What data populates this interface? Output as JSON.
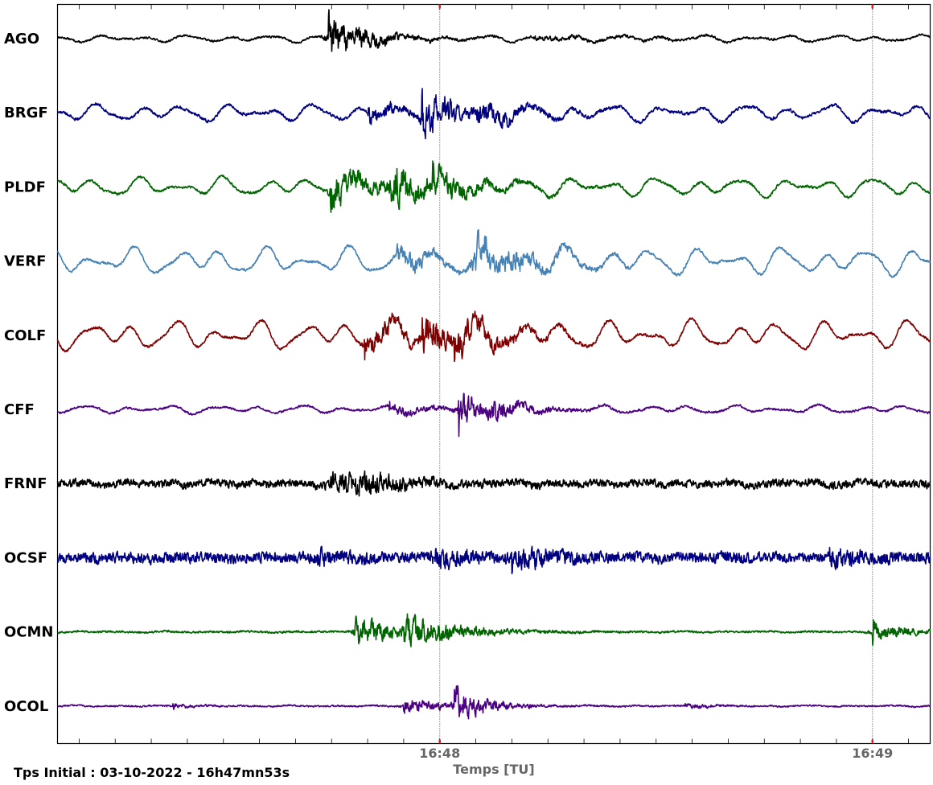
{
  "chart_data": {
    "type": "line",
    "title": "",
    "xlabel": "Temps [TU]",
    "ylabel": "",
    "start_time_text": "Tps Initial : 03-10-2022 - 16h47mn53s",
    "start_time_seconds": 53,
    "duration_seconds": 121,
    "x_ticks": [
      {
        "seconds": 60,
        "label": "16:48"
      },
      {
        "seconds": 120,
        "label": "16:49"
      }
    ],
    "minor_tick_every_seconds": 5,
    "grid": "dotted vertical lines at major ticks",
    "traces": [
      {
        "station": "AGO",
        "color": "#000000",
        "noise": 0.04,
        "low_freq_amp": 0.1,
        "events": [
          {
            "t": 37.5,
            "amp": 0.75,
            "decay": 5
          },
          {
            "t": 66,
            "amp": 0.06,
            "decay": 12
          }
        ]
      },
      {
        "station": "BRGF",
        "color": "#000080",
        "noise": 0.06,
        "low_freq_amp": 0.25,
        "events": [
          {
            "t": 43,
            "amp": 0.25,
            "decay": 6
          },
          {
            "t": 50.5,
            "amp": 0.6,
            "decay": 5
          },
          {
            "t": 58,
            "amp": 0.25,
            "decay": 6
          }
        ]
      },
      {
        "station": "PLDF",
        "color": "#006400",
        "noise": 0.05,
        "low_freq_amp": 0.28,
        "events": [
          {
            "t": 37.8,
            "amp": 0.55,
            "decay": 6
          },
          {
            "t": 46,
            "amp": 0.65,
            "decay": 5
          },
          {
            "t": 52,
            "amp": 0.3,
            "decay": 6
          }
        ]
      },
      {
        "station": "VERF",
        "color": "#4682B4",
        "noise": 0.05,
        "low_freq_amp": 0.4,
        "events": [
          {
            "t": 47,
            "amp": 0.35,
            "decay": 5
          },
          {
            "t": 57.5,
            "amp": 0.6,
            "decay": 5
          },
          {
            "t": 63,
            "amp": 0.2,
            "decay": 6
          }
        ]
      },
      {
        "station": "COLF",
        "color": "#800000",
        "noise": 0.05,
        "low_freq_amp": 0.42,
        "events": [
          {
            "t": 42.5,
            "amp": 0.4,
            "decay": 6
          },
          {
            "t": 50.5,
            "amp": 0.6,
            "decay": 5
          },
          {
            "t": 55,
            "amp": 0.35,
            "decay": 6
          }
        ]
      },
      {
        "station": "CFF",
        "color": "#4B0082",
        "noise": 0.04,
        "low_freq_amp": 0.12,
        "events": [
          {
            "t": 46,
            "amp": 0.15,
            "decay": 6
          },
          {
            "t": 55.5,
            "amp": 0.55,
            "decay": 4
          },
          {
            "t": 60,
            "amp": 0.15,
            "decay": 6
          }
        ]
      },
      {
        "station": "FRNF",
        "color": "#000000",
        "noise": 0.16,
        "low_freq_amp": 0.06,
        "events": [
          {
            "t": 37.8,
            "amp": 0.3,
            "decay": 4
          },
          {
            "t": 41,
            "amp": 0.35,
            "decay": 5
          }
        ]
      },
      {
        "station": "OCSF",
        "color": "#000080",
        "noise": 0.22,
        "low_freq_amp": 0.04,
        "events": [
          {
            "t": 36,
            "amp": 0.25,
            "decay": 3
          },
          {
            "t": 52,
            "amp": 0.25,
            "decay": 4
          },
          {
            "t": 63,
            "amp": 0.35,
            "decay": 4
          },
          {
            "t": 107,
            "amp": 0.25,
            "decay": 4
          }
        ]
      },
      {
        "station": "OCMN",
        "color": "#006400",
        "noise": 0.04,
        "low_freq_amp": 0.02,
        "events": [
          {
            "t": 41,
            "amp": 0.45,
            "decay": 7
          },
          {
            "t": 48,
            "amp": 0.45,
            "decay": 6
          },
          {
            "t": 113,
            "amp": 0.35,
            "decay": 4
          }
        ]
      },
      {
        "station": "OCOL",
        "color": "#4B0082",
        "noise": 0.03,
        "low_freq_amp": 0.02,
        "events": [
          {
            "t": 16,
            "amp": 0.08,
            "decay": 2
          },
          {
            "t": 48,
            "amp": 0.25,
            "decay": 5
          },
          {
            "t": 55,
            "amp": 0.55,
            "decay": 4
          },
          {
            "t": 87,
            "amp": 0.08,
            "decay": 3
          }
        ]
      }
    ]
  }
}
